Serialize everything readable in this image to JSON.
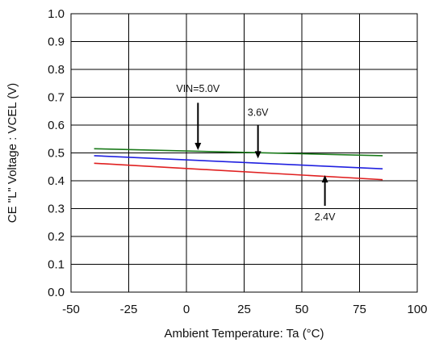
{
  "chart_data": {
    "type": "line",
    "xlabel": "Ambient Temperature: Ta (°C)",
    "ylabel": "CE \"L\" Voltage : VCEL (V)",
    "xlim": [
      -50,
      100
    ],
    "ylim": [
      0.0,
      1.0
    ],
    "x_ticks": [
      -50,
      -25,
      0,
      25,
      50,
      75,
      100
    ],
    "y_ticks": [
      0.0,
      0.1,
      0.2,
      0.3,
      0.4,
      0.5,
      0.6,
      0.7,
      0.8,
      0.9,
      1.0
    ],
    "x_tick_labels": [
      "-50",
      "-25",
      "0",
      "25",
      "50",
      "75",
      "100"
    ],
    "y_tick_labels": [
      "0.0",
      "0.1",
      "0.2",
      "0.3",
      "0.4",
      "0.5",
      "0.6",
      "0.7",
      "0.8",
      "0.9",
      "1.0"
    ],
    "grid": true,
    "series": [
      {
        "x": [
          -40,
          85
        ],
        "y": [
          0.515,
          0.49
        ],
        "color": "#1a7a1a"
      },
      {
        "x": [
          -40,
          85
        ],
        "y": [
          0.49,
          0.443
        ],
        "color": "#2020e0"
      },
      {
        "x": [
          -40,
          85
        ],
        "y": [
          0.463,
          0.404
        ],
        "color": "#e02020"
      }
    ],
    "annotations": [
      {
        "label": "VIN=5.0V",
        "x": 5,
        "y": 0.73,
        "arrow_from_y": 0.68,
        "arrow_to_y": 0.51
      },
      {
        "label": "3.6V",
        "x": 31,
        "y": 0.645,
        "arrow_from_y": 0.6,
        "arrow_to_y": 0.48
      },
      {
        "label": "2.4V",
        "x": 60,
        "y": 0.27,
        "arrow_from_y": 0.31,
        "arrow_to_y": 0.42
      }
    ]
  }
}
